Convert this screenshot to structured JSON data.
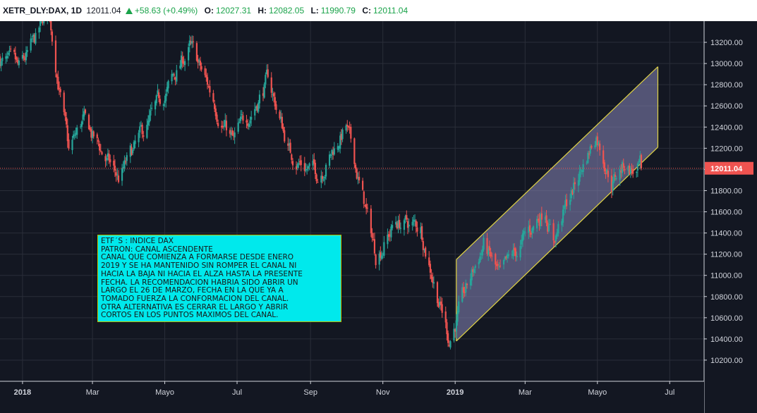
{
  "header": {
    "symbol": "XETR_DLY:DAX, 1D",
    "last": "12011.04",
    "change": "+58.63 (+0.49%)",
    "o_label": "O:",
    "o_value": "12027.31",
    "h_label": "H:",
    "h_value": "12082.05",
    "l_label": "L:",
    "l_value": "11990.79",
    "c_label": "C:",
    "c_value": "12011.04"
  },
  "note": {
    "lines": [
      "ETF´S : ÍNDICE DAX",
      "PATRÓN: CANAL ASCENDENTE",
      "CANAL QUE COMIENZA A FORMARSE DESDE ENERO",
      "2019 Y SE HA MANTENIDO SIN ROMPER EL CANAL NI",
      "HACIA LA BAJA NI HACIA EL ALZA HASTA LA PRESENTE",
      "FECHA. LA RECOMENDACIÓN HABRÍA SIDO ABRIR UN",
      "LARGO EL 26 DE MARZO, FECHA EN LA QUE YA A",
      "TOMADO FUERZA LA CONFORMACIÓN DEL CANAL.",
      "OTRA ALTERNATIVA ES CERRAR EL LARGO Y ABRIR",
      "CORTOS EN LOS PUNTOS MÁXIMOS DEL CANAL."
    ]
  },
  "colors": {
    "background": "#131722",
    "grid": "#2a2e39",
    "bull": "#26a69a",
    "bear": "#ef5350",
    "channel_line": "#e2d544",
    "channel_fill": "#7b7aa8",
    "price_line": "#ef5350",
    "axis_text": "#d1d4dc"
  },
  "chart_data": {
    "type": "candlestick",
    "symbol": "XETR_DLY:DAX",
    "interval": "1D",
    "ylim": [
      10000,
      13400
    ],
    "y_ticks": [
      "10200.00",
      "10400.00",
      "10600.00",
      "10800.00",
      "11000.00",
      "11200.00",
      "11400.00",
      "11600.00",
      "11800.00",
      "12000.00",
      "12200.00",
      "12400.00",
      "12600.00",
      "12800.00",
      "13000.00",
      "13200.00"
    ],
    "y_tick_values": [
      10200,
      10400,
      10600,
      10800,
      11000,
      11200,
      11400,
      11600,
      11800,
      12000,
      12200,
      12400,
      12600,
      12800,
      13000,
      13200
    ],
    "x_ticks": [
      {
        "label": "2018",
        "date": "2018-01-01",
        "bold": true
      },
      {
        "label": "Mar",
        "date": "2018-03-01",
        "bold": false
      },
      {
        "label": "Mayo",
        "date": "2018-05-01",
        "bold": false
      },
      {
        "label": "Jul",
        "date": "2018-07-01",
        "bold": false
      },
      {
        "label": "Sep",
        "date": "2018-09-01",
        "bold": false
      },
      {
        "label": "Nov",
        "date": "2018-11-01",
        "bold": false
      },
      {
        "label": "2019",
        "date": "2019-01-01",
        "bold": true
      },
      {
        "label": "Mar",
        "date": "2019-03-01",
        "bold": false
      },
      {
        "label": "Mayo",
        "date": "2019-05-01",
        "bold": false
      },
      {
        "label": "Jul",
        "date": "2019-07-01",
        "bold": false
      }
    ],
    "x_range": [
      "2017-12-13",
      "2019-07-30"
    ],
    "price_line": {
      "value": 12011.04,
      "label": "12011.04"
    },
    "channel": {
      "upper": [
        {
          "date": "2019-01-02",
          "value": 11150
        },
        {
          "date": "2019-06-21",
          "value": 12970
        }
      ],
      "lower": [
        {
          "date": "2019-01-02",
          "value": 10380
        },
        {
          "date": "2019-06-21",
          "value": 12210
        }
      ]
    },
    "path_closes": [
      {
        "date": "2017-12-13",
        "value": 13050
      },
      {
        "date": "2017-12-29",
        "value": 12900
      },
      {
        "date": "2018-01-12",
        "value": 13200
      },
      {
        "date": "2018-01-23",
        "value": 13500
      },
      {
        "date": "2018-02-09",
        "value": 12150
      },
      {
        "date": "2018-02-21",
        "value": 12450
      },
      {
        "date": "2018-03-23",
        "value": 11900
      },
      {
        "date": "2018-04-24",
        "value": 12550
      },
      {
        "date": "2018-05-22",
        "value": 13150
      },
      {
        "date": "2018-06-28",
        "value": 12250
      },
      {
        "date": "2018-07-27",
        "value": 12850
      },
      {
        "date": "2018-08-15",
        "value": 12150
      },
      {
        "date": "2018-09-07",
        "value": 11950
      },
      {
        "date": "2018-10-01",
        "value": 12400
      },
      {
        "date": "2018-10-26",
        "value": 11200
      },
      {
        "date": "2018-11-12",
        "value": 11500
      },
      {
        "date": "2018-12-03",
        "value": 11450
      },
      {
        "date": "2018-12-27",
        "value": 10400
      },
      {
        "date": "2019-01-25",
        "value": 11300
      },
      {
        "date": "2019-02-08",
        "value": 10950
      },
      {
        "date": "2019-03-18",
        "value": 11650
      },
      {
        "date": "2019-03-25",
        "value": 11350
      },
      {
        "date": "2019-04-30",
        "value": 12350
      },
      {
        "date": "2019-05-13",
        "value": 11900
      },
      {
        "date": "2019-05-24",
        "value": 12050
      },
      {
        "date": "2019-06-03",
        "value": 11970
      },
      {
        "date": "2019-06-07",
        "value": 12011.04
      }
    ]
  }
}
